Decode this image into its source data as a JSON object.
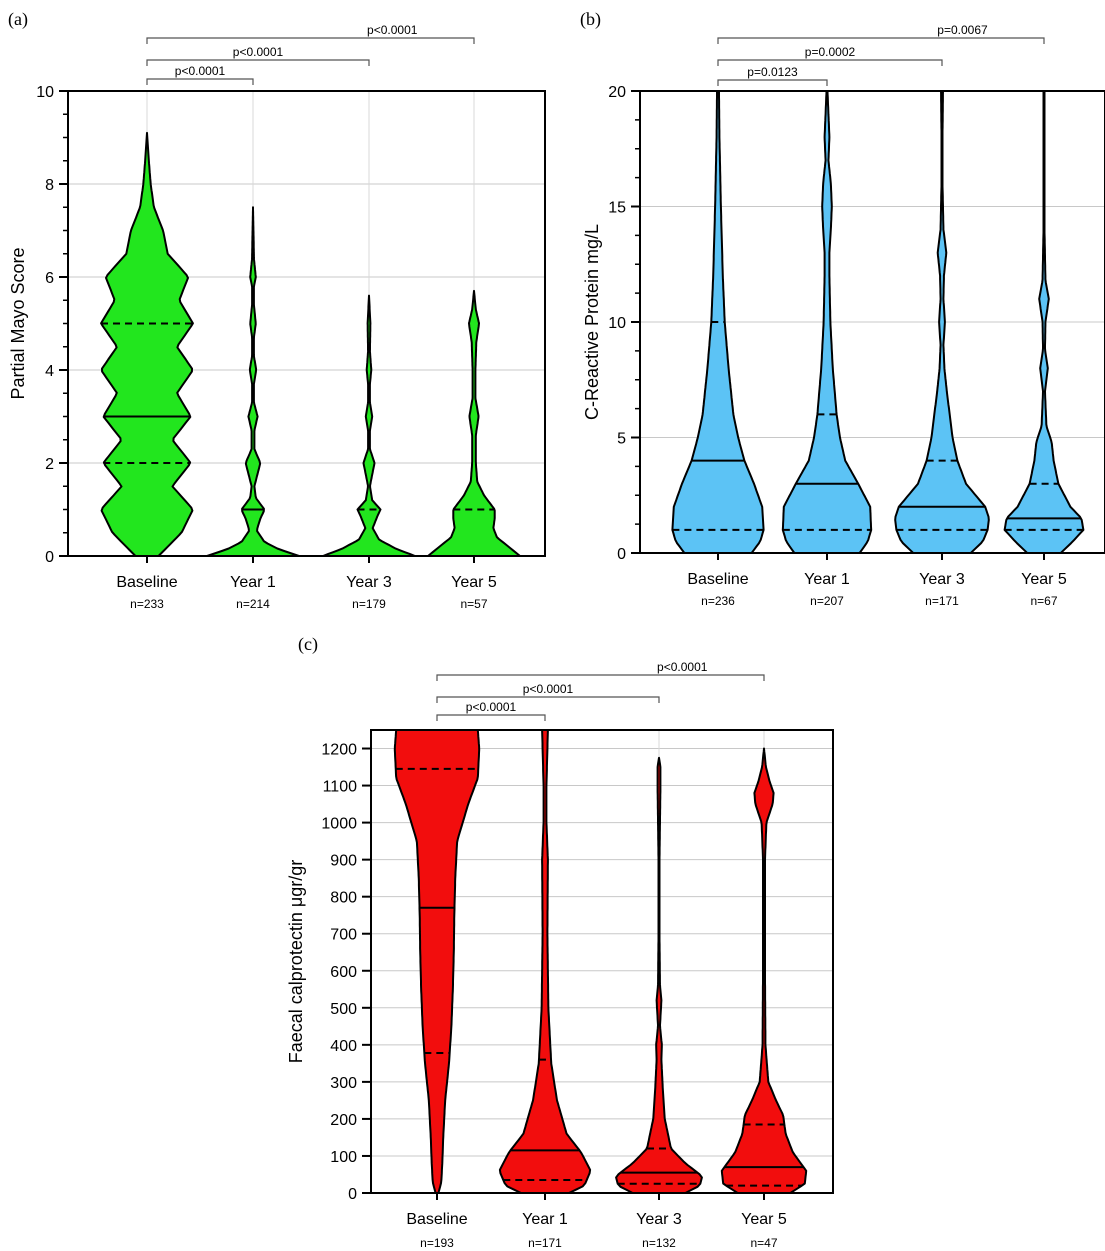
{
  "chart_data": [
    {
      "type": "violin",
      "panel_label": "(a)",
      "ylabel": "Partial Mayo Score",
      "ylim": [
        0,
        10
      ],
      "yticks": [
        0,
        2,
        4,
        6,
        8,
        10
      ],
      "fill_color": "#22e61e",
      "grid": true,
      "categories": [
        "Baseline",
        "Year 1",
        "Year 3",
        "Year 5"
      ],
      "n_labels": [
        "n=233",
        "n=214",
        "n=179",
        "n=57"
      ],
      "series": [
        {
          "median": 3,
          "q1": 2,
          "q3": 5,
          "max": 9.1,
          "density": [
            [
              0,
              0.25
            ],
            [
              0.5,
              0.75
            ],
            [
              1,
              1.0
            ],
            [
              1.5,
              0.55
            ],
            [
              2,
              0.95
            ],
            [
              2.5,
              0.55
            ],
            [
              3,
              0.95
            ],
            [
              3.5,
              0.65
            ],
            [
              4,
              1.0
            ],
            [
              4.5,
              0.65
            ],
            [
              5,
              1.0
            ],
            [
              5.5,
              0.7
            ],
            [
              6,
              0.9
            ],
            [
              6.5,
              0.45
            ],
            [
              7,
              0.35
            ],
            [
              7.5,
              0.15
            ],
            [
              8,
              0.08
            ],
            [
              8.5,
              0.04
            ],
            [
              9.1,
              0
            ]
          ]
        },
        {
          "median": 1,
          "q1": 0,
          "q3": 1,
          "max": 7.5,
          "density": [
            [
              0,
              1.0
            ],
            [
              0.15,
              0.55
            ],
            [
              0.3,
              0.25
            ],
            [
              0.55,
              0.08
            ],
            [
              0.8,
              0.16
            ],
            [
              1,
              0.25
            ],
            [
              1.25,
              0.06
            ],
            [
              1.5,
              0.03
            ],
            [
              2,
              0.16
            ],
            [
              2.3,
              0.03
            ],
            [
              2.7,
              0.03
            ],
            [
              3,
              0.1
            ],
            [
              3.3,
              0.02
            ],
            [
              3.7,
              0.02
            ],
            [
              4,
              0.07
            ],
            [
              4.3,
              0.02
            ],
            [
              4.7,
              0.02
            ],
            [
              5,
              0.06
            ],
            [
              5.4,
              0.02
            ],
            [
              5.8,
              0.02
            ],
            [
              6,
              0.06
            ],
            [
              6.4,
              0.02
            ],
            [
              7,
              0.01
            ],
            [
              7.5,
              0
            ]
          ]
        },
        {
          "median": 0,
          "q1": 0,
          "q3": 1,
          "max": 5.6,
          "density": [
            [
              0,
              1.0
            ],
            [
              0.15,
              0.6
            ],
            [
              0.35,
              0.22
            ],
            [
              0.6,
              0.08
            ],
            [
              0.85,
              0.18
            ],
            [
              1,
              0.25
            ],
            [
              1.2,
              0.07
            ],
            [
              1.5,
              0.02
            ],
            [
              2,
              0.12
            ],
            [
              2.3,
              0.02
            ],
            [
              2.7,
              0.02
            ],
            [
              3,
              0.07
            ],
            [
              3.3,
              0.02
            ],
            [
              3.7,
              0.02
            ],
            [
              4,
              0.05
            ],
            [
              4.4,
              0.02
            ],
            [
              5,
              0.03
            ],
            [
              5.6,
              0
            ]
          ]
        },
        {
          "median": 0,
          "q1": 0,
          "q3": 1,
          "max": 5.7,
          "density": [
            [
              0,
              1.0
            ],
            [
              0.2,
              0.75
            ],
            [
              0.4,
              0.5
            ],
            [
              0.6,
              0.42
            ],
            [
              0.8,
              0.45
            ],
            [
              1,
              0.45
            ],
            [
              1.3,
              0.22
            ],
            [
              1.6,
              0.07
            ],
            [
              2,
              0.04
            ],
            [
              2.6,
              0.04
            ],
            [
              3,
              0.1
            ],
            [
              3.4,
              0.03
            ],
            [
              4,
              0.03
            ],
            [
              4.6,
              0.05
            ],
            [
              5,
              0.11
            ],
            [
              5.3,
              0.04
            ],
            [
              5.7,
              0
            ]
          ]
        }
      ],
      "comparisons": [
        {
          "from": "Baseline",
          "to": "Year 1",
          "label": "p<0.0001"
        },
        {
          "from": "Baseline",
          "to": "Year 3",
          "label": "p<0.0001"
        },
        {
          "from": "Baseline",
          "to": "Year 5",
          "label": "p<0.0001"
        }
      ]
    },
    {
      "type": "violin",
      "panel_label": "(b)",
      "ylabel": "C-Reactive Protein mg/L",
      "ylim": [
        0,
        20
      ],
      "yticks": [
        0,
        5,
        10,
        15,
        20
      ],
      "fill_color": "#5cc3f5",
      "grid": true,
      "categories": [
        "Baseline",
        "Year 1",
        "Year 3",
        "Year 5"
      ],
      "n_labels": [
        "n=236",
        "n=207",
        "n=171",
        "n=67"
      ],
      "series": [
        {
          "median": 4,
          "q1": 1,
          "q3": 10,
          "max": 20,
          "density": [
            [
              0,
              0.7
            ],
            [
              0.5,
              0.88
            ],
            [
              1,
              0.95
            ],
            [
              2,
              0.92
            ],
            [
              3,
              0.75
            ],
            [
              4,
              0.55
            ],
            [
              5,
              0.42
            ],
            [
              6,
              0.32
            ],
            [
              8,
              0.22
            ],
            [
              10,
              0.14
            ],
            [
              12,
              0.1
            ],
            [
              15,
              0.06
            ],
            [
              18,
              0.03
            ],
            [
              20,
              0.02
            ]
          ]
        },
        {
          "median": 3,
          "q1": 1,
          "q3": 6,
          "max": 20,
          "density": [
            [
              0,
              0.68
            ],
            [
              0.5,
              0.85
            ],
            [
              1,
              0.92
            ],
            [
              2,
              0.9
            ],
            [
              3,
              0.65
            ],
            [
              4,
              0.38
            ],
            [
              5,
              0.27
            ],
            [
              6,
              0.2
            ],
            [
              8,
              0.12
            ],
            [
              10,
              0.07
            ],
            [
              12,
              0.05
            ],
            [
              13,
              0.05
            ],
            [
              14,
              0.08
            ],
            [
              15,
              0.1
            ],
            [
              16,
              0.08
            ],
            [
              17,
              0.03
            ],
            [
              18,
              0.05
            ],
            [
              19,
              0.03
            ],
            [
              20,
              0.01
            ]
          ]
        },
        {
          "median": 2,
          "q1": 1,
          "q3": 4,
          "max": 20,
          "density": [
            [
              0,
              0.6
            ],
            [
              0.5,
              0.85
            ],
            [
              1,
              0.95
            ],
            [
              1.5,
              0.98
            ],
            [
              2,
              0.9
            ],
            [
              3,
              0.5
            ],
            [
              4,
              0.32
            ],
            [
              5,
              0.22
            ],
            [
              6,
              0.16
            ],
            [
              7,
              0.1
            ],
            [
              8,
              0.05
            ],
            [
              9,
              0.03
            ],
            [
              10,
              0.06
            ],
            [
              11,
              0.03
            ],
            [
              12,
              0.04
            ],
            [
              13,
              0.09
            ],
            [
              14,
              0.03
            ],
            [
              16,
              0.01
            ],
            [
              18,
              0.01
            ],
            [
              20,
              0.02
            ]
          ]
        },
        {
          "median": 1.5,
          "q1": 1,
          "q3": 3,
          "max": 20,
          "density": [
            [
              0,
              0.35
            ],
            [
              0.5,
              0.6
            ],
            [
              1,
              0.82
            ],
            [
              1.5,
              0.78
            ],
            [
              2,
              0.55
            ],
            [
              3,
              0.3
            ],
            [
              4,
              0.2
            ],
            [
              4.8,
              0.16
            ],
            [
              5.5,
              0.05
            ],
            [
              7,
              0.02
            ],
            [
              8,
              0.08
            ],
            [
              8.8,
              0.02
            ],
            [
              10,
              0.03
            ],
            [
              11,
              0.1
            ],
            [
              11.8,
              0.03
            ],
            [
              14,
              0.01
            ],
            [
              20,
              0.01
            ]
          ]
        }
      ],
      "comparisons": [
        {
          "from": "Baseline",
          "to": "Year 1",
          "label": "p=0.0123"
        },
        {
          "from": "Baseline",
          "to": "Year 3",
          "label": "p=0.0002"
        },
        {
          "from": "Baseline",
          "to": "Year 5",
          "label": "p=0.0067"
        }
      ]
    },
    {
      "type": "violin",
      "panel_label": "(c)",
      "ylabel": "Faecal calprotectin μgr/gr",
      "ylim": [
        0,
        1250
      ],
      "yticks": [
        0,
        100,
        200,
        300,
        400,
        500,
        600,
        700,
        800,
        900,
        1000,
        1100,
        1200
      ],
      "fill_color": "#f20d0d",
      "grid": true,
      "categories": [
        "Baseline",
        "Year 1",
        "Year 3",
        "Year 5"
      ],
      "n_labels": [
        "n=193",
        "n=171",
        "n=132",
        "n=47"
      ],
      "series": [
        {
          "median": 770,
          "q1": 378,
          "q3": 1145,
          "max": 1250,
          "density": [
            [
              0,
              0.03
            ],
            [
              30,
              0.09
            ],
            [
              80,
              0.11
            ],
            [
              150,
              0.13
            ],
            [
              250,
              0.17
            ],
            [
              350,
              0.25
            ],
            [
              450,
              0.3
            ],
            [
              550,
              0.33
            ],
            [
              650,
              0.35
            ],
            [
              750,
              0.36
            ],
            [
              850,
              0.38
            ],
            [
              950,
              0.42
            ],
            [
              1050,
              0.65
            ],
            [
              1120,
              0.85
            ],
            [
              1200,
              0.88
            ],
            [
              1250,
              0.85
            ]
          ]
        },
        {
          "median": 115,
          "q1": 35,
          "q3": 360,
          "max": 1250,
          "density": [
            [
              0,
              0.5
            ],
            [
              20,
              0.82
            ],
            [
              60,
              0.95
            ],
            [
              110,
              0.75
            ],
            [
              160,
              0.45
            ],
            [
              250,
              0.25
            ],
            [
              350,
              0.13
            ],
            [
              500,
              0.07
            ],
            [
              700,
              0.05
            ],
            [
              900,
              0.06
            ],
            [
              1000,
              0.03
            ],
            [
              1100,
              0.03
            ],
            [
              1200,
              0.05
            ],
            [
              1250,
              0.06
            ]
          ]
        },
        {
          "median": 55,
          "q1": 25,
          "q3": 120,
          "max": 1175,
          "density": [
            [
              0,
              0.55
            ],
            [
              20,
              0.85
            ],
            [
              45,
              0.9
            ],
            [
              80,
              0.55
            ],
            [
              120,
              0.25
            ],
            [
              200,
              0.12
            ],
            [
              280,
              0.08
            ],
            [
              360,
              0.05
            ],
            [
              400,
              0.06
            ],
            [
              450,
              0.02
            ],
            [
              520,
              0.05
            ],
            [
              560,
              0.02
            ],
            [
              700,
              0.01
            ],
            [
              900,
              0.01
            ],
            [
              1100,
              0.03
            ],
            [
              1150,
              0.03
            ],
            [
              1175,
              0
            ]
          ]
        },
        {
          "median": 70,
          "q1": 20,
          "q3": 185,
          "max": 1200,
          "density": [
            [
              0,
              0.55
            ],
            [
              25,
              0.85
            ],
            [
              60,
              0.88
            ],
            [
              110,
              0.6
            ],
            [
              160,
              0.45
            ],
            [
              210,
              0.4
            ],
            [
              250,
              0.25
            ],
            [
              300,
              0.09
            ],
            [
              400,
              0.03
            ],
            [
              600,
              0.02
            ],
            [
              900,
              0.02
            ],
            [
              1000,
              0.05
            ],
            [
              1050,
              0.18
            ],
            [
              1080,
              0.2
            ],
            [
              1110,
              0.12
            ],
            [
              1150,
              0.04
            ],
            [
              1200,
              0
            ]
          ]
        }
      ],
      "comparisons": [
        {
          "from": "Baseline",
          "to": "Year 1",
          "label": "p<0.0001"
        },
        {
          "from": "Baseline",
          "to": "Year 3",
          "label": "p<0.0001"
        },
        {
          "from": "Baseline",
          "to": "Year 5",
          "label": "p<0.0001"
        }
      ]
    }
  ]
}
